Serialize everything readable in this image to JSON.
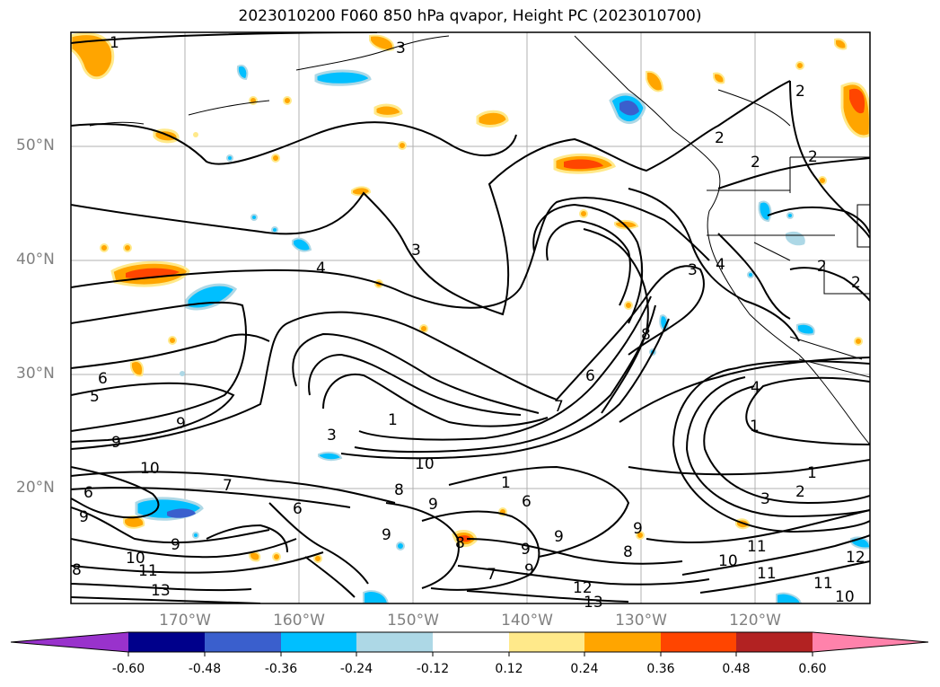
{
  "title": "2023010200 F060 850 hPa qvapor, Height PC (2023010700)",
  "lat_labels": [
    "50°N",
    "40°N",
    "30°N",
    "20°N"
  ],
  "lon_labels": [
    "170°W",
    "160°W",
    "150°W",
    "140°W",
    "130°W",
    "120°W"
  ],
  "colorbar": {
    "ticks": [
      "-0.60",
      "-0.48",
      "-0.36",
      "-0.24",
      "-0.12",
      "0.12",
      "0.24",
      "0.36",
      "0.48",
      "0.60"
    ],
    "colors": [
      "#9932cc",
      "#00008b",
      "#3a5fcd",
      "#00bfff",
      "#add8e6",
      "#ffffff",
      "#ffe98a",
      "#ffa500",
      "#ff4500",
      "#b22222",
      "#ff82ab"
    ]
  },
  "contour_labels": [
    "1",
    "3",
    "2",
    "2",
    "2",
    "2",
    "2",
    "2",
    "3",
    "3",
    "4",
    "4",
    "4",
    "6",
    "5",
    "9",
    "9",
    "1",
    "3",
    "8",
    "7",
    "6",
    "10",
    "10",
    "7",
    "6",
    "8",
    "9",
    "1",
    "6",
    "1",
    "1",
    "3",
    "2",
    "11",
    "11",
    "10",
    "12",
    "11",
    "10",
    "9",
    "8",
    "9",
    "9",
    "9",
    "8",
    "7",
    "9",
    "12",
    "13",
    "9",
    "10",
    "11",
    "13",
    "6",
    "9",
    "8"
  ]
}
